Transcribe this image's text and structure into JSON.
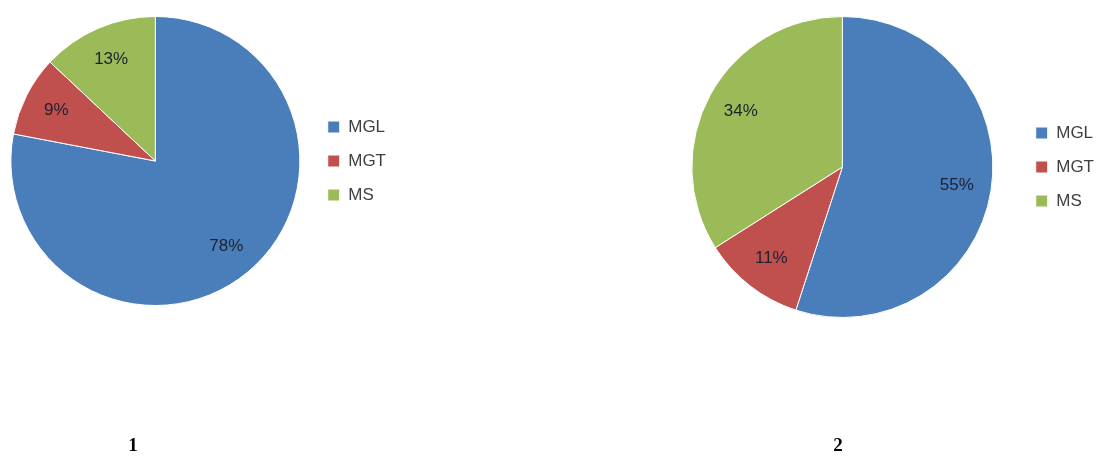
{
  "chart_data": [
    {
      "type": "pie",
      "title": "1",
      "categories": [
        "MGL",
        "MGT",
        "MS"
      ],
      "values": [
        78,
        9,
        13
      ],
      "colors": [
        "#4a7ebb",
        "#c0504d",
        "#9bbb59"
      ],
      "value_labels": [
        "78%",
        "9%",
        "13%"
      ],
      "legend": "right"
    },
    {
      "type": "pie",
      "title": "2",
      "categories": [
        "MGL",
        "MGT",
        "MS"
      ],
      "values": [
        55,
        11,
        34
      ],
      "colors": [
        "#4a7ebb",
        "#c0504d",
        "#9bbb59"
      ],
      "value_labels": [
        "55%",
        "11%",
        "34%"
      ],
      "legend": "right"
    }
  ]
}
